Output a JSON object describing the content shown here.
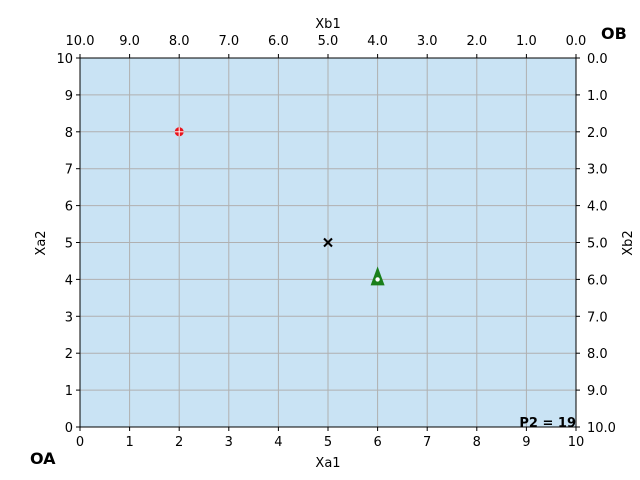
{
  "chart_data": {
    "type": "scatter",
    "axes": {
      "bottom": {
        "label": "Xa1",
        "range": [
          0,
          10
        ],
        "ticks": [
          "0",
          "1",
          "2",
          "3",
          "4",
          "5",
          "6",
          "7",
          "8",
          "9",
          "10"
        ]
      },
      "left": {
        "label": "Xa2",
        "range": [
          0,
          10
        ],
        "ticks": [
          "0",
          "1",
          "2",
          "3",
          "4",
          "5",
          "6",
          "7",
          "8",
          "9",
          "10"
        ]
      },
      "top": {
        "label": "Xb1",
        "range": [
          10,
          0
        ],
        "ticks": [
          "10.0",
          "9.0",
          "8.0",
          "7.0",
          "6.0",
          "5.0",
          "4.0",
          "3.0",
          "2.0",
          "1.0",
          "0.0"
        ]
      },
      "right": {
        "label": "Xb2",
        "range": [
          10,
          0
        ],
        "ticks": [
          "0.0",
          "1.0",
          "2.0",
          "3.0",
          "4.0",
          "5.0",
          "6.0",
          "7.0",
          "8.0",
          "9.0",
          "10.0"
        ]
      }
    },
    "grid": true,
    "background_color": "#c9e3f4",
    "grid_color": "#b0b0b0",
    "points": [
      {
        "x": 2,
        "y": 8,
        "marker": "circle-plus",
        "color": "#e8141c"
      },
      {
        "x": 5,
        "y": 5,
        "marker": "x",
        "color": "#000000"
      },
      {
        "x": 6,
        "y": 4,
        "marker": "triangle",
        "color": "#1a7f1a"
      }
    ],
    "corner_labels": {
      "origin_a": "OA",
      "origin_b": "OB"
    },
    "annotation": "P2 = 19"
  }
}
